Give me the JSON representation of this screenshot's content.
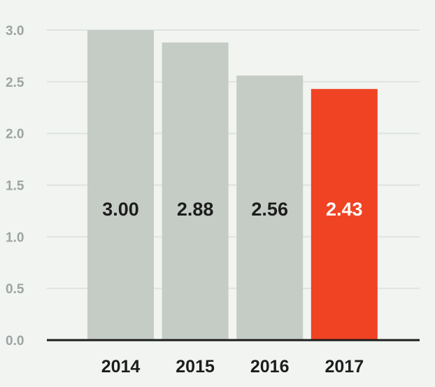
{
  "chart_data": {
    "type": "bar",
    "title": "",
    "xlabel": "",
    "ylabel": "",
    "categories": [
      "2014",
      "2015",
      "2016",
      "2017"
    ],
    "values": [
      3.0,
      2.88,
      2.56,
      2.43
    ],
    "value_labels": [
      "3.00",
      "2.88",
      "2.56",
      "2.43"
    ],
    "ylim": [
      0,
      3.0
    ],
    "yticks": [
      0,
      0.5,
      1.0,
      1.5,
      2.0,
      2.5,
      3.0
    ],
    "ytick_labels": [
      "0.0",
      "0.5",
      "1.0",
      "1.5",
      "2.0",
      "2.5",
      "3.0"
    ],
    "grid": true,
    "legend": "none",
    "colors": {
      "background": "#f1f4f1",
      "bar": "#c5ccc6",
      "highlight_bar": "#f04323",
      "gridline": "#dfe3df",
      "axis": "#1d1d1d",
      "tick_text": "#9ca4a4",
      "category_text": "#1d1d1d",
      "value_text": "#1d1d1d",
      "highlight_value_text": "#ffffff"
    },
    "highlight_index": 3
  }
}
